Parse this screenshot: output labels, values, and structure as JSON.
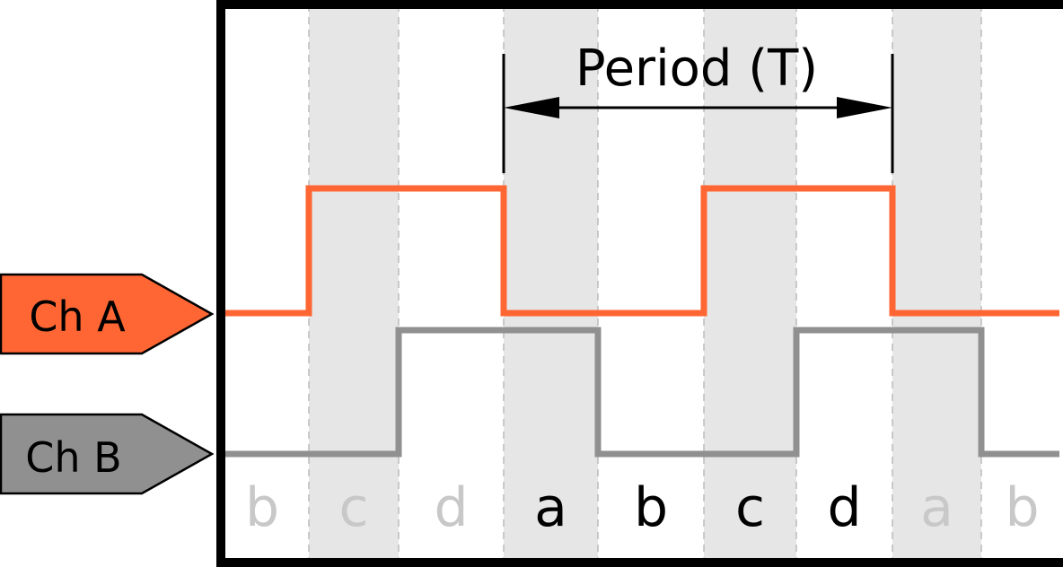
{
  "period_label": "Period (T)",
  "channels": [
    {
      "name": "Ch A",
      "color": "#FF6633",
      "levels": [
        0,
        1,
        1,
        0,
        0,
        1,
        1,
        0,
        0
      ]
    },
    {
      "name": "Ch B",
      "color": "#909090",
      "levels": [
        0,
        0,
        1,
        1,
        0,
        0,
        1,
        1,
        0
      ]
    }
  ],
  "states": [
    {
      "label": "b",
      "emphasis": false,
      "shaded": false
    },
    {
      "label": "c",
      "emphasis": false,
      "shaded": true
    },
    {
      "label": "d",
      "emphasis": false,
      "shaded": false
    },
    {
      "label": "a",
      "emphasis": true,
      "shaded": true
    },
    {
      "label": "b",
      "emphasis": true,
      "shaded": false
    },
    {
      "label": "c",
      "emphasis": true,
      "shaded": true
    },
    {
      "label": "d",
      "emphasis": true,
      "shaded": false
    },
    {
      "label": "a",
      "emphasis": false,
      "shaded": true
    },
    {
      "label": "b",
      "emphasis": false,
      "shaded": false
    }
  ],
  "period_span": {
    "start_state": 3,
    "end_state": 6
  },
  "colors": {
    "shade": "#E6E6E6",
    "frame": "#000000",
    "label_active": "#000000",
    "label_inactive": "#C8C8C8",
    "divider": "#BBBBBB"
  }
}
